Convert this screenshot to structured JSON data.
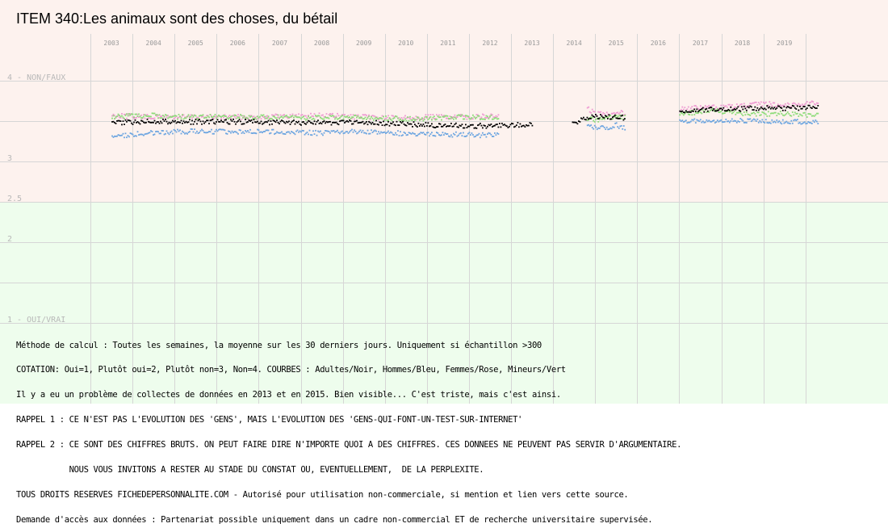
{
  "chart_data": {
    "type": "scatter",
    "title": "ITEM 340:Les animaux sont des choses, du bétail",
    "x_labels": [
      "2003",
      "2004",
      "2005",
      "2006",
      "2007",
      "2008",
      "2009",
      "2010",
      "2011",
      "2012",
      "2013",
      "2014",
      "2015",
      "2016",
      "2017",
      "2018",
      "2019"
    ],
    "y_tick_labels": [
      {
        "value": 4,
        "label": "4 - NON/FAUX"
      },
      {
        "value": 3,
        "label": "3"
      },
      {
        "value": 2.5,
        "label": "2.5"
      },
      {
        "value": 2,
        "label": "2"
      },
      {
        "value": 1,
        "label": "1 - OUI/VRAI"
      }
    ],
    "ylim": [
      1,
      4
    ],
    "grid": true,
    "band_colors": {
      "upper": "#fdf2ee",
      "lower": "#eefded",
      "grid": "#d6d6d6"
    },
    "x_range": [
      2002.5,
      2020.0
    ],
    "series": [
      {
        "name": "Femmes/Rose",
        "color": "#ee9ad2",
        "segments": [
          {
            "start": 2003.0,
            "end": 2012.2,
            "values": [
              3.58,
              3.56,
              3.56,
              3.56,
              3.56,
              3.57,
              3.58,
              3.56,
              3.55,
              3.56,
              3.56,
              3.57
            ]
          },
          {
            "start": 2014.3,
            "end": 2015.2,
            "values": [
              3.66,
              3.6,
              3.6,
              3.62,
              3.61
            ]
          },
          {
            "start": 2016.5,
            "end": 2019.8,
            "values": [
              3.66,
              3.68,
              3.69,
              3.72,
              3.71,
              3.74
            ]
          }
        ]
      },
      {
        "name": "Mineurs/Vert",
        "color": "#8cdc78",
        "segments": [
          {
            "start": 2003.0,
            "end": 2012.2,
            "values": [
              3.56,
              3.58,
              3.56,
              3.56,
              3.56,
              3.55,
              3.55,
              3.55,
              3.54,
              3.54,
              3.56,
              3.55
            ]
          },
          {
            "start": 2014.3,
            "end": 2015.2,
            "values": [
              3.54,
              3.52,
              3.55,
              3.55,
              3.56
            ]
          },
          {
            "start": 2016.5,
            "end": 2019.8,
            "values": [
              3.6,
              3.64,
              3.6,
              3.6,
              3.58
            ]
          }
        ]
      },
      {
        "name": "Adultes/Noir",
        "color": "#000000",
        "segments": [
          {
            "start": 2003.0,
            "end": 2013.0,
            "values": [
              3.48,
              3.51,
              3.5,
              3.5,
              3.5,
              3.49,
              3.49,
              3.49,
              3.48,
              3.46,
              3.45,
              3.45,
              3.47
            ]
          },
          {
            "start": 2013.95,
            "end": 2015.2,
            "values": [
              3.48,
              3.53,
              3.56,
              3.56,
              3.56,
              3.55
            ]
          },
          {
            "start": 2016.5,
            "end": 2019.8,
            "values": [
              3.64,
              3.65,
              3.66,
              3.67,
              3.67,
              3.68
            ]
          }
        ]
      },
      {
        "name": "Hommes/Bleu",
        "color": "#6aa4e0",
        "segments": [
          {
            "start": 2003.0,
            "end": 2012.2,
            "values": [
              3.32,
              3.36,
              3.38,
              3.38,
              3.38,
              3.37,
              3.36,
              3.38,
              3.36,
              3.35,
              3.34,
              3.33
            ]
          },
          {
            "start": 2014.3,
            "end": 2015.2,
            "values": [
              3.46,
              3.42,
              3.42,
              3.46,
              3.42
            ]
          },
          {
            "start": 2016.5,
            "end": 2019.8,
            "values": [
              3.5,
              3.52,
              3.51,
              3.51,
              3.5,
              3.5,
              3.49
            ]
          }
        ]
      }
    ]
  },
  "notes": [
    "Méthode de calcul : Toutes les semaines, la moyenne sur les 30 derniers jours. Uniquement si échantillon >300",
    "COTATION: Oui=1, Plutôt oui=2, Plutôt non=3, Non=4. COURBES : Adultes/Noir, Hommes/Bleu, Femmes/Rose, Mineurs/Vert",
    "Il y a eu un problème de collectes de données en 2013 et en 2015. Bien visible... C'est triste, mais c'est ainsi.",
    "RAPPEL 1 : CE N'EST PAS L'EVOLUTION DES 'GENS', MAIS L'EVOLUTION DES 'GENS-QUI-FONT-UN-TEST-SUR-INTERNET'",
    "RAPPEL 2 : CE SONT DES CHIFFRES BRUTS. ON PEUT FAIRE DIRE N'IMPORTE QUOI A DES CHIFFRES. CES DONNEES NE PEUVENT PAS SERVIR D'ARGUMENTAIRE.",
    "           NOUS VOUS INVITONS A RESTER AU STADE DU CONSTAT OU, EVENTUELLEMENT,  DE LA PERPLEXITE.",
    "TOUS DROITS RESERVES FICHEDEPERSONNALITE.COM - Autorisé pour utilisation non-commerciale, si mention et lien vers cette source.",
    "Demande d'accès aux données : Partenariat possible uniquement dans un cadre non-commercial ET de recherche universitaire supervisée."
  ]
}
